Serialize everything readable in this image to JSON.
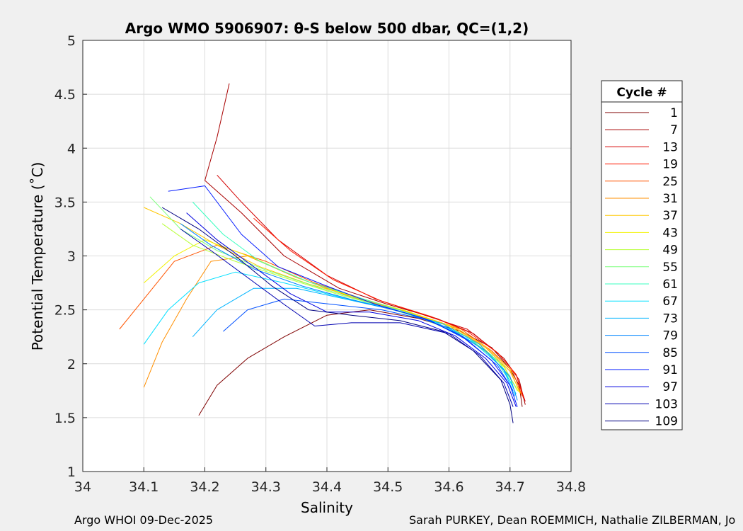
{
  "chart_data": {
    "type": "line",
    "title": "Argo WMO 5906907: θ-S below 500 dbar,  QC=(1,2)",
    "xlabel": "Salinity",
    "ylabel": "Potential Temperature (˚C)",
    "xlim": [
      34.0,
      34.8
    ],
    "ylim": [
      1.0,
      5.0
    ],
    "xticks": [
      34.0,
      34.1,
      34.2,
      34.3,
      34.4,
      34.5,
      34.6,
      34.7,
      34.8
    ],
    "xtick_labels": [
      "34",
      "34.1",
      "34.2",
      "34.3",
      "34.4",
      "34.5",
      "34.6",
      "34.7",
      "34.8"
    ],
    "yticks": [
      1.0,
      1.5,
      2.0,
      2.5,
      3.0,
      3.5,
      4.0,
      4.5,
      5.0
    ],
    "ytick_labels": [
      "1",
      "1.5",
      "2",
      "2.5",
      "3",
      "3.5",
      "4",
      "4.5",
      "5"
    ],
    "grid": true,
    "legend_title": "Cycle #",
    "legend_position": "outside-right",
    "series": [
      {
        "name": "1",
        "color": "#7f0000",
        "values": [
          [
            34.19,
            1.52
          ],
          [
            34.22,
            1.8
          ],
          [
            34.27,
            2.05
          ],
          [
            34.33,
            2.25
          ],
          [
            34.4,
            2.45
          ],
          [
            34.47,
            2.5
          ],
          [
            34.55,
            2.42
          ],
          [
            34.62,
            2.3
          ],
          [
            34.67,
            2.15
          ],
          [
            34.7,
            1.95
          ],
          [
            34.715,
            1.8
          ],
          [
            34.72,
            1.6
          ]
        ]
      },
      {
        "name": "7",
        "color": "#a80000",
        "values": [
          [
            34.24,
            4.6
          ],
          [
            34.22,
            4.1
          ],
          [
            34.2,
            3.7
          ],
          [
            34.26,
            3.4
          ],
          [
            34.33,
            3.0
          ],
          [
            34.42,
            2.7
          ],
          [
            34.5,
            2.55
          ],
          [
            34.58,
            2.42
          ],
          [
            34.64,
            2.28
          ],
          [
            34.69,
            2.05
          ],
          [
            34.715,
            1.85
          ],
          [
            34.725,
            1.62
          ]
        ]
      },
      {
        "name": "13",
        "color": "#d40000",
        "values": [
          [
            34.22,
            3.75
          ],
          [
            34.26,
            3.5
          ],
          [
            34.32,
            3.15
          ],
          [
            34.4,
            2.82
          ],
          [
            34.48,
            2.6
          ],
          [
            34.56,
            2.45
          ],
          [
            34.63,
            2.32
          ],
          [
            34.68,
            2.1
          ],
          [
            34.71,
            1.9
          ],
          [
            34.725,
            1.65
          ]
        ]
      },
      {
        "name": "19",
        "color": "#ff1a00",
        "values": [
          [
            34.28,
            3.35
          ],
          [
            34.34,
            3.05
          ],
          [
            34.41,
            2.78
          ],
          [
            34.49,
            2.58
          ],
          [
            34.57,
            2.44
          ],
          [
            34.63,
            2.3
          ],
          [
            34.68,
            2.1
          ],
          [
            34.71,
            1.9
          ],
          [
            34.722,
            1.68
          ]
        ]
      },
      {
        "name": "25",
        "color": "#ff5500",
        "values": [
          [
            34.06,
            2.32
          ],
          [
            34.1,
            2.6
          ],
          [
            34.15,
            2.95
          ],
          [
            34.22,
            3.1
          ],
          [
            34.3,
            2.95
          ],
          [
            34.38,
            2.75
          ],
          [
            34.47,
            2.58
          ],
          [
            34.55,
            2.45
          ],
          [
            34.62,
            2.32
          ],
          [
            34.67,
            2.12
          ],
          [
            34.705,
            1.92
          ],
          [
            34.72,
            1.7
          ]
        ]
      },
      {
        "name": "31",
        "color": "#ff8f00",
        "values": [
          [
            34.1,
            1.78
          ],
          [
            34.13,
            2.2
          ],
          [
            34.17,
            2.6
          ],
          [
            34.21,
            2.95
          ],
          [
            34.27,
            3.0
          ],
          [
            34.35,
            2.8
          ],
          [
            34.44,
            2.62
          ],
          [
            34.53,
            2.48
          ],
          [
            34.61,
            2.33
          ],
          [
            34.66,
            2.15
          ],
          [
            34.7,
            1.93
          ],
          [
            34.718,
            1.72
          ]
        ]
      },
      {
        "name": "37",
        "color": "#ffc800",
        "values": [
          [
            34.1,
            3.45
          ],
          [
            34.16,
            3.3
          ],
          [
            34.22,
            3.1
          ],
          [
            34.29,
            2.9
          ],
          [
            34.37,
            2.74
          ],
          [
            34.46,
            2.6
          ],
          [
            34.54,
            2.47
          ],
          [
            34.61,
            2.34
          ],
          [
            34.66,
            2.16
          ],
          [
            34.7,
            1.95
          ],
          [
            34.716,
            1.73
          ]
        ]
      },
      {
        "name": "43",
        "color": "#f2f200",
        "values": [
          [
            34.1,
            2.75
          ],
          [
            34.15,
            3.0
          ],
          [
            34.2,
            3.15
          ],
          [
            34.28,
            2.98
          ],
          [
            34.36,
            2.78
          ],
          [
            34.45,
            2.61
          ],
          [
            34.53,
            2.49
          ],
          [
            34.6,
            2.35
          ],
          [
            34.65,
            2.18
          ],
          [
            34.69,
            1.97
          ],
          [
            34.714,
            1.74
          ]
        ]
      },
      {
        "name": "49",
        "color": "#b8ff38",
        "values": [
          [
            34.13,
            3.3
          ],
          [
            34.18,
            3.1
          ],
          [
            34.25,
            2.95
          ],
          [
            34.33,
            2.8
          ],
          [
            34.42,
            2.64
          ],
          [
            34.5,
            2.52
          ],
          [
            34.58,
            2.38
          ],
          [
            34.64,
            2.2
          ],
          [
            34.69,
            1.98
          ],
          [
            34.712,
            1.75
          ]
        ]
      },
      {
        "name": "55",
        "color": "#7cff7c",
        "values": [
          [
            34.11,
            3.55
          ],
          [
            34.16,
            3.25
          ],
          [
            34.22,
            3.05
          ],
          [
            34.3,
            2.87
          ],
          [
            34.39,
            2.7
          ],
          [
            34.48,
            2.55
          ],
          [
            34.56,
            2.41
          ],
          [
            34.63,
            2.25
          ],
          [
            34.68,
            2.03
          ],
          [
            34.71,
            1.78
          ]
        ]
      },
      {
        "name": "61",
        "color": "#38ffc0",
        "values": [
          [
            34.18,
            3.5
          ],
          [
            34.23,
            3.2
          ],
          [
            34.29,
            2.95
          ],
          [
            34.37,
            2.76
          ],
          [
            34.46,
            2.6
          ],
          [
            34.54,
            2.46
          ],
          [
            34.61,
            2.3
          ],
          [
            34.67,
            2.08
          ],
          [
            34.705,
            1.8
          ]
        ]
      },
      {
        "name": "67",
        "color": "#00e0ff",
        "values": [
          [
            34.1,
            2.18
          ],
          [
            34.14,
            2.5
          ],
          [
            34.19,
            2.75
          ],
          [
            34.25,
            2.85
          ],
          [
            34.33,
            2.75
          ],
          [
            34.42,
            2.62
          ],
          [
            34.5,
            2.52
          ],
          [
            34.58,
            2.38
          ],
          [
            34.64,
            2.2
          ],
          [
            34.69,
            1.95
          ],
          [
            34.71,
            1.72
          ]
        ]
      },
      {
        "name": "73",
        "color": "#00b4ff",
        "values": [
          [
            34.18,
            2.25
          ],
          [
            34.22,
            2.5
          ],
          [
            34.28,
            2.7
          ],
          [
            34.35,
            2.7
          ],
          [
            34.43,
            2.6
          ],
          [
            34.51,
            2.5
          ],
          [
            34.59,
            2.37
          ],
          [
            34.65,
            2.18
          ],
          [
            34.69,
            1.94
          ],
          [
            34.708,
            1.7
          ]
        ]
      },
      {
        "name": "79",
        "color": "#0084ff",
        "values": [
          [
            34.16,
            3.3
          ],
          [
            34.21,
            3.1
          ],
          [
            34.28,
            2.88
          ],
          [
            34.36,
            2.72
          ],
          [
            34.45,
            2.58
          ],
          [
            34.53,
            2.47
          ],
          [
            34.6,
            2.33
          ],
          [
            34.66,
            2.12
          ],
          [
            34.7,
            1.88
          ],
          [
            34.712,
            1.66
          ]
        ]
      },
      {
        "name": "85",
        "color": "#0050ff",
        "values": [
          [
            34.23,
            2.3
          ],
          [
            34.27,
            2.5
          ],
          [
            34.33,
            2.6
          ],
          [
            34.41,
            2.55
          ],
          [
            34.49,
            2.5
          ],
          [
            34.57,
            2.4
          ],
          [
            34.63,
            2.22
          ],
          [
            34.68,
            1.98
          ],
          [
            34.705,
            1.75
          ]
        ]
      },
      {
        "name": "91",
        "color": "#0018ff",
        "values": [
          [
            34.14,
            3.6
          ],
          [
            34.2,
            3.65
          ],
          [
            34.26,
            3.2
          ],
          [
            34.32,
            2.9
          ],
          [
            34.4,
            2.72
          ],
          [
            34.48,
            2.55
          ],
          [
            34.56,
            2.42
          ],
          [
            34.62,
            2.26
          ],
          [
            34.67,
            2.03
          ],
          [
            34.7,
            1.8
          ],
          [
            34.712,
            1.6
          ]
        ]
      },
      {
        "name": "97",
        "color": "#0000e0",
        "values": [
          [
            34.17,
            3.4
          ],
          [
            34.22,
            3.15
          ],
          [
            34.28,
            2.9
          ],
          [
            34.34,
            2.65
          ],
          [
            34.4,
            2.48
          ],
          [
            34.47,
            2.48
          ],
          [
            34.55,
            2.4
          ],
          [
            34.61,
            2.26
          ],
          [
            34.66,
            2.05
          ],
          [
            34.695,
            1.82
          ],
          [
            34.71,
            1.6
          ]
        ]
      },
      {
        "name": "103",
        "color": "#0000b0",
        "values": [
          [
            34.16,
            3.25
          ],
          [
            34.21,
            3.05
          ],
          [
            34.27,
            2.8
          ],
          [
            34.33,
            2.55
          ],
          [
            34.38,
            2.35
          ],
          [
            34.44,
            2.38
          ],
          [
            34.52,
            2.38
          ],
          [
            34.6,
            2.28
          ],
          [
            34.65,
            2.08
          ],
          [
            34.69,
            1.82
          ],
          [
            34.705,
            1.6
          ]
        ]
      },
      {
        "name": "109",
        "color": "#000080",
        "values": [
          [
            34.13,
            3.45
          ],
          [
            34.19,
            3.25
          ],
          [
            34.25,
            3.0
          ],
          [
            34.31,
            2.72
          ],
          [
            34.37,
            2.5
          ],
          [
            34.44,
            2.45
          ],
          [
            34.52,
            2.4
          ],
          [
            34.59,
            2.3
          ],
          [
            34.64,
            2.12
          ],
          [
            34.685,
            1.85
          ],
          [
            34.7,
            1.62
          ],
          [
            34.705,
            1.45
          ]
        ]
      }
    ]
  },
  "footer": {
    "left": "Argo WHOI 09-Dec-2025",
    "right": "Sarah PURKEY, Dean ROEMMICH, Nathalie ZILBERMAN, Jo"
  }
}
